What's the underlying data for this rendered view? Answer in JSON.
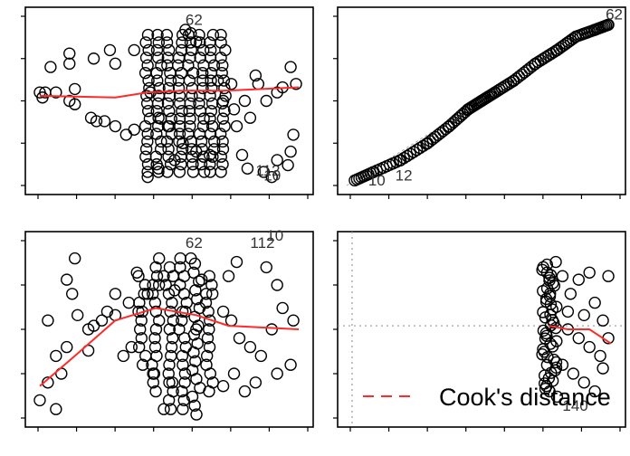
{
  "chart_data": [
    {
      "id": "p1",
      "type": "scatter",
      "xlim": [
        0,
        1
      ],
      "ylim": [
        0,
        1
      ],
      "points": [
        [
          0.02,
          0.55
        ],
        [
          0.04,
          0.55
        ],
        [
          0.08,
          0.55
        ],
        [
          0.13,
          0.5
        ],
        [
          0.15,
          0.48
        ],
        [
          0.15,
          0.57
        ],
        [
          0.03,
          0.52
        ],
        [
          0.06,
          0.7
        ],
        [
          0.13,
          0.78
        ],
        [
          0.13,
          0.72
        ],
        [
          0.22,
          0.75
        ],
        [
          0.28,
          0.8
        ],
        [
          0.3,
          0.72
        ],
        [
          0.21,
          0.4
        ],
        [
          0.23,
          0.38
        ],
        [
          0.26,
          0.38
        ],
        [
          0.3,
          0.35
        ],
        [
          0.34,
          0.3
        ],
        [
          0.37,
          0.33
        ],
        [
          0.37,
          0.8
        ],
        [
          0.43,
          0.55
        ],
        [
          0.46,
          0.4
        ],
        [
          0.5,
          0.35
        ],
        [
          0.55,
          0.25
        ],
        [
          0.6,
          0.2
        ],
        [
          0.65,
          0.18
        ],
        [
          0.7,
          0.5
        ],
        [
          0.74,
          0.45
        ],
        [
          0.78,
          0.5
        ],
        [
          0.8,
          0.4
        ],
        [
          0.83,
          0.6
        ],
        [
          0.86,
          0.5
        ],
        [
          0.9,
          0.55
        ],
        [
          0.92,
          0.58
        ],
        [
          0.95,
          0.7
        ],
        [
          0.96,
          0.3
        ],
        [
          0.95,
          0.2
        ],
        [
          0.97,
          0.6
        ],
        [
          0.75,
          0.35
        ],
        [
          0.73,
          0.6
        ],
        [
          0.68,
          0.62
        ],
        [
          0.82,
          0.65
        ],
        [
          0.9,
          0.15
        ],
        [
          0.79,
          0.1
        ],
        [
          0.85,
          0.08
        ],
        [
          0.94,
          0.12
        ],
        [
          0.88,
          0.05
        ],
        [
          0.77,
          0.18
        ],
        [
          0.42,
          0.05
        ],
        [
          0.46,
          0.1
        ],
        [
          0.52,
          0.15
        ],
        [
          0.56,
          0.92
        ],
        [
          0.58,
          0.9
        ],
        [
          0.6,
          0.85
        ]
      ],
      "column_x": [
        0.42,
        0.46,
        0.5,
        0.54,
        0.58,
        0.62,
        0.66,
        0.7
      ],
      "column_y": [
        0.08,
        0.92
      ],
      "smoother": [
        [
          0.02,
          0.53
        ],
        [
          0.3,
          0.52
        ],
        [
          0.42,
          0.55
        ],
        [
          0.55,
          0.56
        ],
        [
          0.7,
          0.56
        ],
        [
          0.98,
          0.58
        ]
      ],
      "point_labels": [
        {
          "text": "62",
          "x": 0.56,
          "y": 0.95
        },
        {
          "text": "112",
          "x": 0.82,
          "y": 0.06
        },
        {
          "text": "10",
          "x": 0.85,
          "y": 0.03
        }
      ]
    },
    {
      "id": "p2",
      "type": "scatter",
      "xlim": [
        0,
        1
      ],
      "ylim": [
        0,
        1
      ],
      "reference_line": [
        [
          0,
          0
        ],
        [
          1,
          1
        ]
      ],
      "curve": [
        [
          0.03,
          0.03
        ],
        [
          0.1,
          0.08
        ],
        [
          0.2,
          0.15
        ],
        [
          0.3,
          0.25
        ],
        [
          0.38,
          0.35
        ],
        [
          0.45,
          0.45
        ],
        [
          0.5,
          0.5
        ],
        [
          0.55,
          0.55
        ],
        [
          0.62,
          0.62
        ],
        [
          0.7,
          0.72
        ],
        [
          0.78,
          0.8
        ],
        [
          0.85,
          0.88
        ],
        [
          0.92,
          0.92
        ],
        [
          0.97,
          0.95
        ]
      ],
      "point_labels": [
        {
          "text": "62",
          "x": 0.96,
          "y": 0.98
        },
        {
          "text": "10",
          "x": 0.08,
          "y": 0.0
        },
        {
          "text": "12",
          "x": 0.18,
          "y": 0.03
        }
      ]
    },
    {
      "id": "p3",
      "type": "scatter",
      "xlim": [
        0,
        1
      ],
      "ylim": [
        0,
        1
      ],
      "points": [
        [
          0.02,
          0.1
        ],
        [
          0.05,
          0.2
        ],
        [
          0.08,
          0.35
        ],
        [
          0.1,
          0.25
        ],
        [
          0.12,
          0.4
        ],
        [
          0.14,
          0.7
        ],
        [
          0.16,
          0.58
        ],
        [
          0.2,
          0.5
        ],
        [
          0.22,
          0.52
        ],
        [
          0.25,
          0.55
        ],
        [
          0.27,
          0.6
        ],
        [
          0.3,
          0.58
        ],
        [
          0.33,
          0.35
        ],
        [
          0.36,
          0.4
        ],
        [
          0.38,
          0.82
        ],
        [
          0.4,
          0.6
        ],
        [
          0.42,
          0.7
        ],
        [
          0.44,
          0.75
        ],
        [
          0.48,
          0.8
        ],
        [
          0.52,
          0.72
        ],
        [
          0.56,
          0.6
        ],
        [
          0.6,
          0.5
        ],
        [
          0.62,
          0.78
        ],
        [
          0.66,
          0.7
        ],
        [
          0.7,
          0.6
        ],
        [
          0.73,
          0.55
        ],
        [
          0.76,
          0.45
        ],
        [
          0.8,
          0.4
        ],
        [
          0.84,
          0.35
        ],
        [
          0.88,
          0.5
        ],
        [
          0.92,
          0.62
        ],
        [
          0.96,
          0.55
        ],
        [
          0.95,
          0.3
        ],
        [
          0.9,
          0.25
        ],
        [
          0.82,
          0.2
        ],
        [
          0.78,
          0.15
        ],
        [
          0.74,
          0.25
        ],
        [
          0.7,
          0.18
        ],
        [
          0.05,
          0.55
        ],
        [
          0.12,
          0.78
        ],
        [
          0.15,
          0.9
        ],
        [
          0.48,
          0.05
        ],
        [
          0.55,
          0.05
        ],
        [
          0.45,
          0.15
        ],
        [
          0.44,
          0.25
        ],
        [
          0.5,
          0.2
        ],
        [
          0.58,
          0.9
        ],
        [
          0.86,
          0.85
        ],
        [
          0.9,
          0.75
        ],
        [
          0.72,
          0.8
        ],
        [
          0.75,
          0.88
        ],
        [
          0.2,
          0.38
        ],
        [
          0.08,
          0.05
        ],
        [
          0.3,
          0.7
        ],
        [
          0.35,
          0.65
        ]
      ],
      "columns": [
        {
          "x": 0.45,
          "y": [
            0.2,
            0.95
          ]
        },
        {
          "x": 0.5,
          "y": [
            0.05,
            0.9
          ]
        },
        {
          "x": 0.55,
          "y": [
            0.1,
            0.95
          ]
        },
        {
          "x": 0.6,
          "y": [
            0.02,
            0.9
          ]
        },
        {
          "x": 0.65,
          "y": [
            0.15,
            0.85
          ]
        },
        {
          "x": 0.4,
          "y": [
            0.3,
            0.85
          ]
        }
      ],
      "smoother": [
        [
          0.02,
          0.18
        ],
        [
          0.15,
          0.35
        ],
        [
          0.3,
          0.55
        ],
        [
          0.45,
          0.62
        ],
        [
          0.6,
          0.58
        ],
        [
          0.72,
          0.52
        ],
        [
          0.98,
          0.5
        ]
      ],
      "point_labels": [
        {
          "text": "62",
          "x": 0.56,
          "y": 0.96
        },
        {
          "text": "112",
          "x": 0.8,
          "y": 0.96
        },
        {
          "text": "10",
          "x": 0.86,
          "y": 1.0
        }
      ]
    },
    {
      "id": "p4",
      "type": "scatter",
      "xlim": [
        0,
        1
      ],
      "ylim": [
        0,
        1
      ],
      "h_reference": 0.52,
      "v_reference": 0.02,
      "column": {
        "x": 0.75,
        "y": [
          0.15,
          0.88
        ],
        "count": 50,
        "jitter": 0.03
      },
      "points": [
        [
          0.8,
          0.8
        ],
        [
          0.83,
          0.7
        ],
        [
          0.86,
          0.78
        ],
        [
          0.9,
          0.82
        ],
        [
          0.92,
          0.65
        ],
        [
          0.95,
          0.55
        ],
        [
          0.97,
          0.8
        ],
        [
          0.82,
          0.5
        ],
        [
          0.86,
          0.45
        ],
        [
          0.9,
          0.4
        ],
        [
          0.94,
          0.35
        ],
        [
          0.97,
          0.45
        ],
        [
          0.8,
          0.3
        ],
        [
          0.84,
          0.25
        ],
        [
          0.88,
          0.2
        ],
        [
          0.92,
          0.15
        ],
        [
          0.95,
          0.28
        ],
        [
          0.78,
          0.12
        ],
        [
          0.82,
          0.6
        ],
        [
          0.88,
          0.58
        ]
      ],
      "smoother": [
        [
          0.75,
          0.52
        ],
        [
          0.82,
          0.5
        ],
        [
          0.9,
          0.5
        ],
        [
          0.98,
          0.42
        ]
      ],
      "point_labels": [
        {
          "text": "140",
          "x": 0.8,
          "y": 0.04
        }
      ],
      "legend": {
        "label": "Cook's distance",
        "placement": "bottom-right"
      }
    }
  ]
}
